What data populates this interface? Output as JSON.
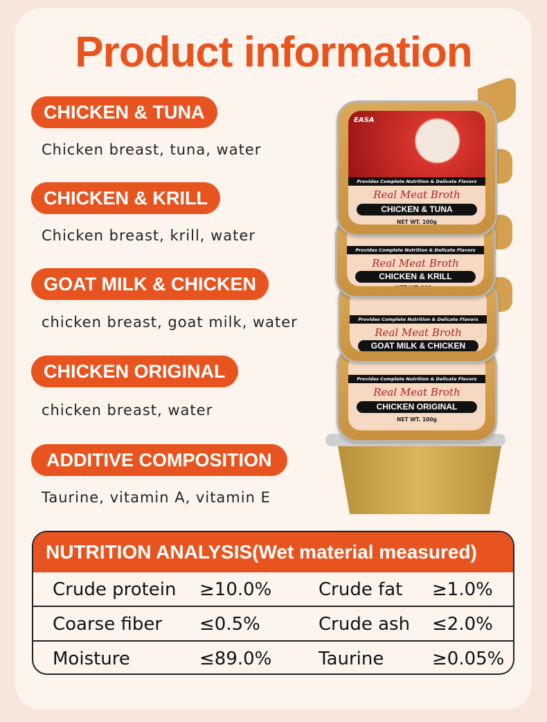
{
  "title": "Product information",
  "products": [
    {
      "name": "CHICKEN & TUNA",
      "ingredients": "Chicken breast, tuna, water"
    },
    {
      "name": "CHICKEN & KRILL",
      "ingredients": "Chicken breast, krill, water"
    },
    {
      "name": "GOAT MILK & CHICKEN",
      "ingredients": "chicken breast, goat milk, water"
    },
    {
      "name": "CHICKEN ORIGINAL",
      "ingredients": "chicken breast, water"
    }
  ],
  "additive": {
    "label": "ADDITIVE COMPOSITION",
    "value": "Taurine, vitamin A, vitamin E"
  },
  "nutrition": {
    "heading": "NUTRITION ANALYSIS(Wet material measured)",
    "rows": [
      [
        {
          "name": "Crude protein",
          "value": "≥10.0%"
        },
        {
          "name": "Crude fat",
          "value": "≥1.0%"
        }
      ],
      [
        {
          "name": "Coarse fiber",
          "value": "≤0.5%"
        },
        {
          "name": "Crude ash",
          "value": "≤2.0%"
        }
      ],
      [
        {
          "name": "Moisture",
          "value": "≤89.0%"
        },
        {
          "name": "Taurine",
          "value": "≥0.05%"
        }
      ]
    ]
  },
  "package": {
    "brand": "EASA",
    "tagline": "Provides Complete Nutrition & Delicate Flavors",
    "script": "Real Meat Broth",
    "net": "NET WT. 100g",
    "flavors": [
      "CHICKEN & TUNA",
      "CHICKEN & KRILL",
      "GOAT MILK & CHICKEN",
      "CHICKEN ORIGINAL"
    ]
  },
  "colors": {
    "accent": "#e8541f",
    "background": "#fdf4ee"
  }
}
